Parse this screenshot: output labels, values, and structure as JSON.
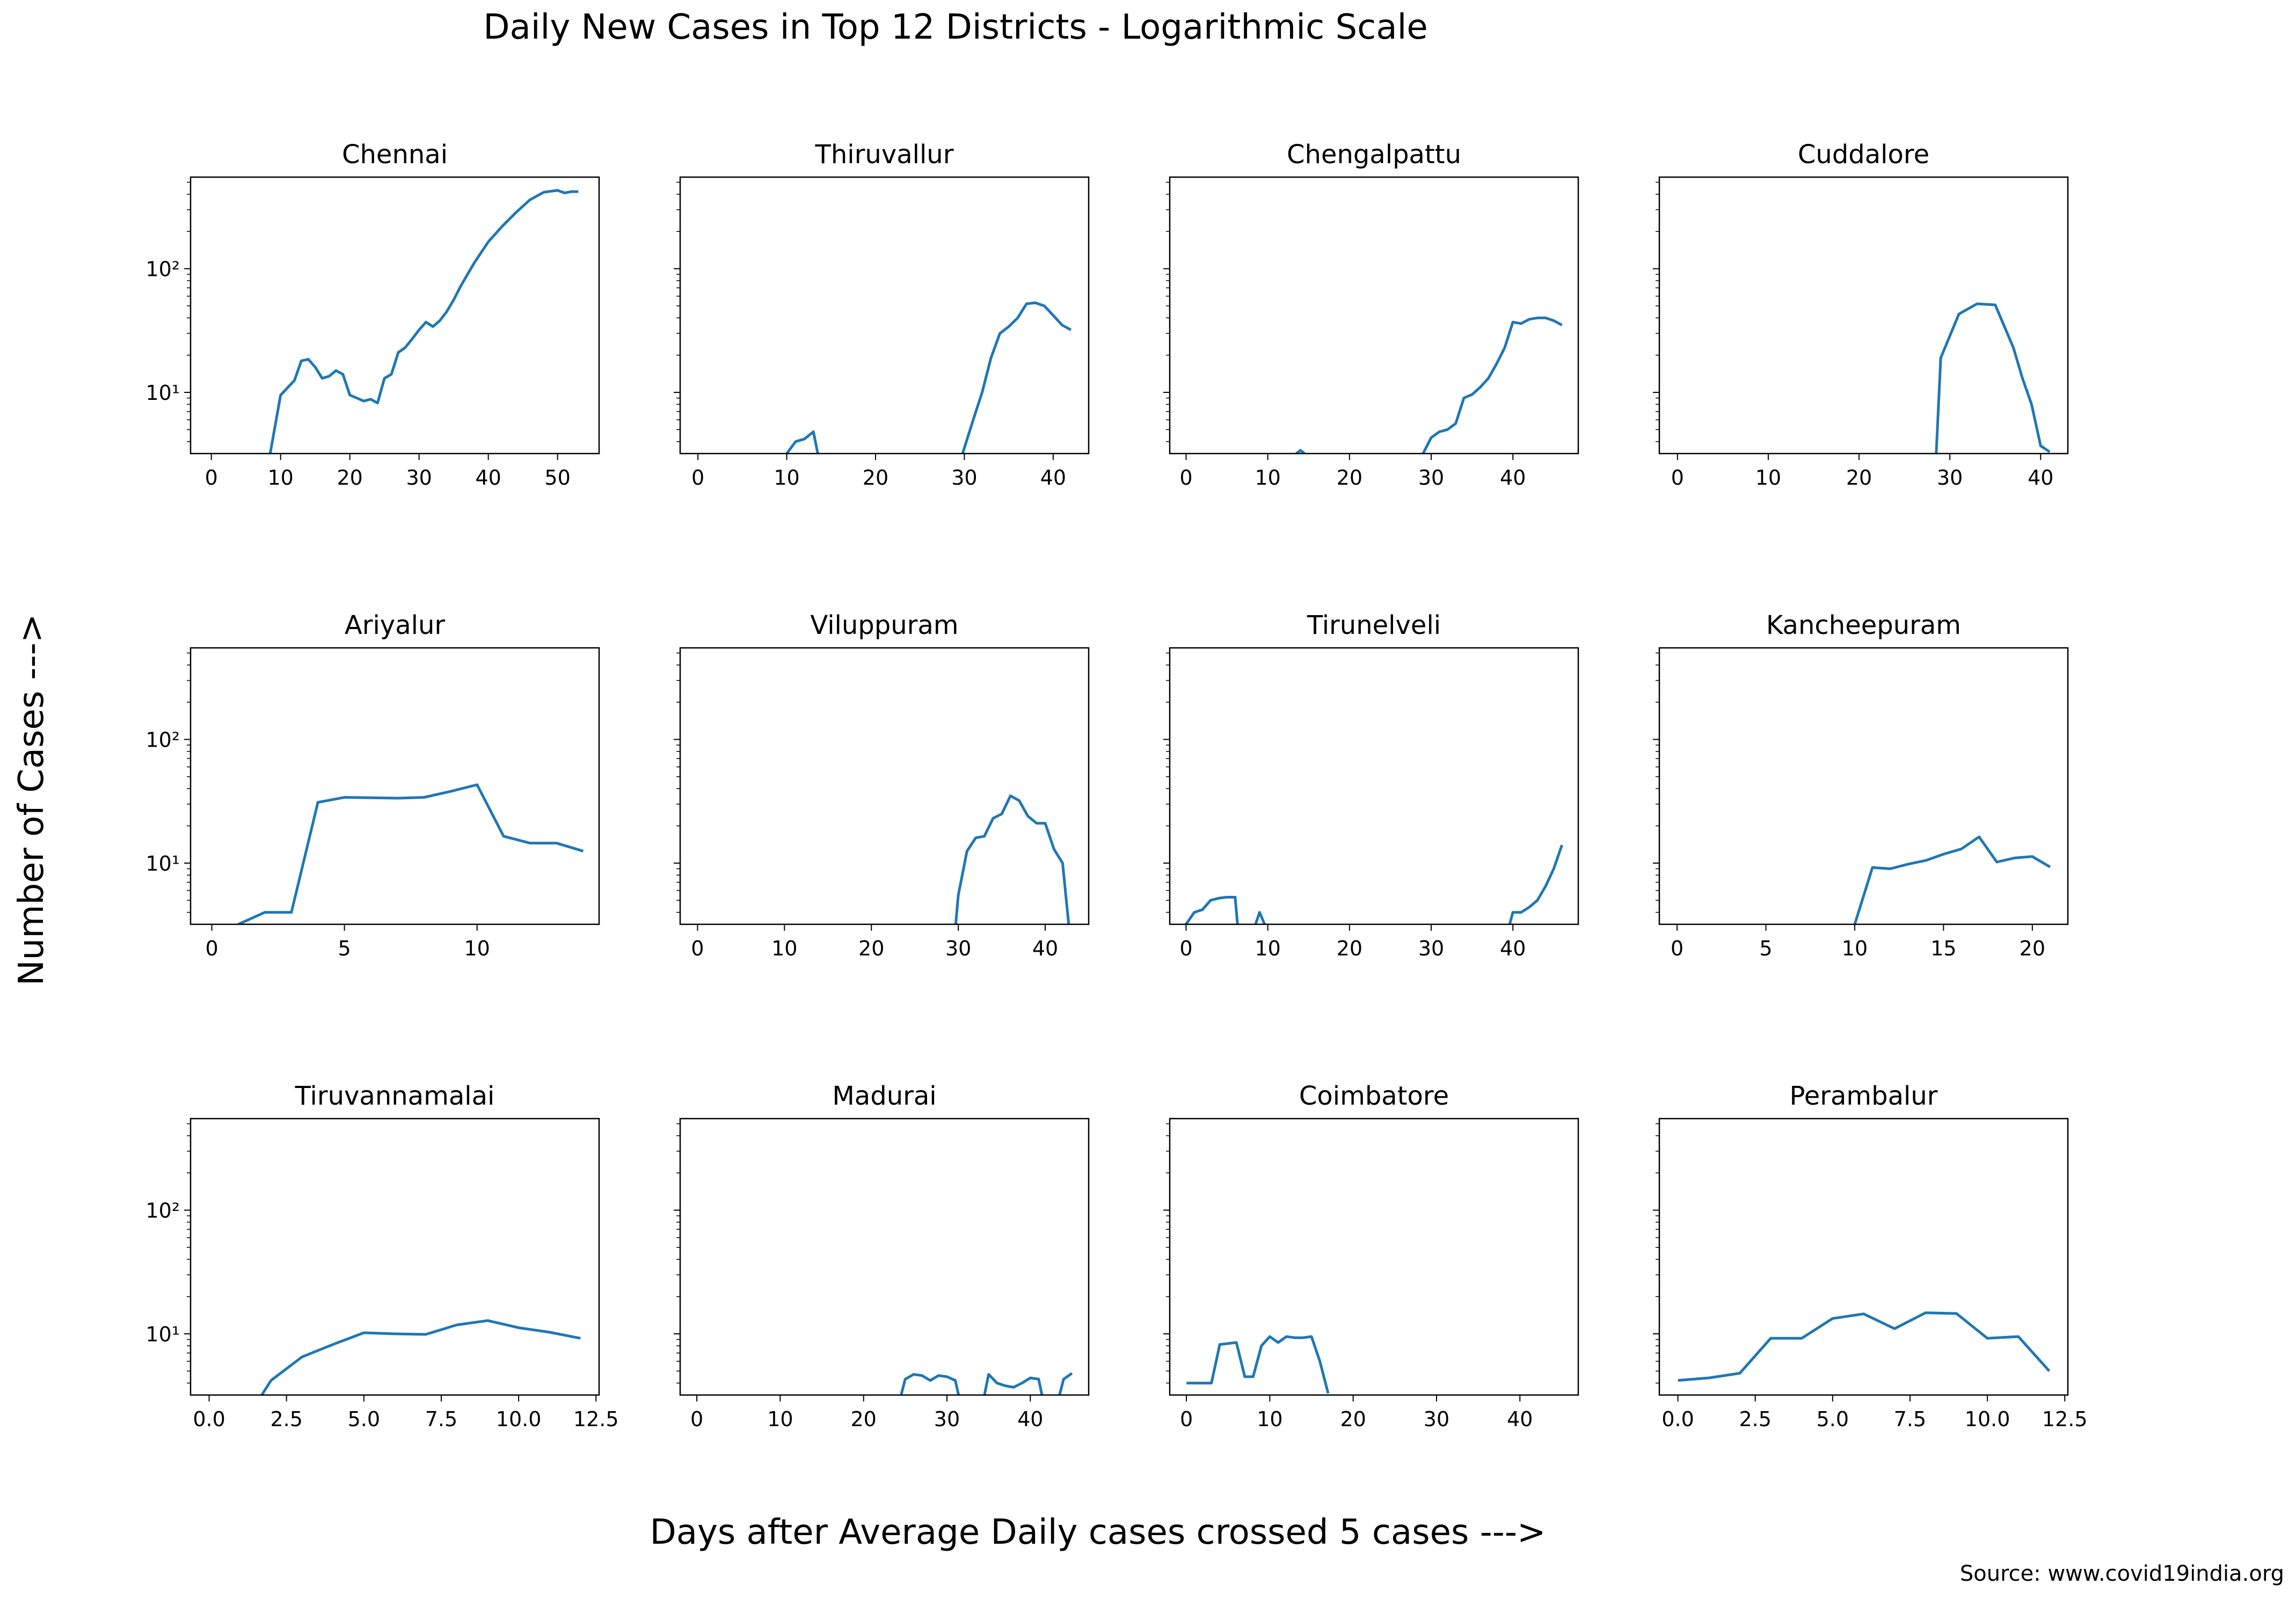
{
  "figure": {
    "title": "Daily New Cases in Top 12 Districts - Logarithmic Scale",
    "xlabel": "Days after Average Daily cases crossed 5 cases --->",
    "ylabel": "Number of Cases --->",
    "source": "Source: www.covid19india.org",
    "line_color": "#1f77b4"
  },
  "chart_data": [
    {
      "type": "line",
      "title": "Chennai",
      "yscale": "log",
      "ylim": [
        3.2,
        550
      ],
      "xlim": [
        -3,
        56
      ],
      "xticks": [
        0,
        10,
        20,
        30,
        40,
        50
      ],
      "xtick_labels": [
        "0",
        "10",
        "20",
        "30",
        "40",
        "50"
      ],
      "yticks": [
        10,
        100
      ],
      "ytick_labels": [
        "10¹",
        "10²"
      ],
      "show_yticklabels": true,
      "x": [
        8.5,
        10,
        12,
        13,
        14,
        15,
        16,
        17,
        18,
        19,
        20,
        21,
        22,
        23,
        24,
        25,
        26,
        27,
        28,
        29,
        30,
        31,
        32,
        33,
        34,
        35,
        36,
        37,
        38,
        40,
        42,
        44,
        46,
        48,
        50,
        51,
        52,
        53
      ],
      "y": [
        3.2,
        9.5,
        12.5,
        18,
        18.5,
        16,
        13,
        13.5,
        15,
        14,
        9.5,
        9,
        8.5,
        8.8,
        8.2,
        13,
        14,
        21,
        23,
        27,
        32,
        37,
        34,
        38,
        45,
        56,
        72,
        90,
        112,
        165,
        220,
        285,
        360,
        415,
        430,
        410,
        420,
        420
      ]
    },
    {
      "type": "line",
      "title": "Thiruvallur",
      "yscale": "log",
      "ylim": [
        3.2,
        550
      ],
      "xlim": [
        -2,
        44
      ],
      "xticks": [
        0,
        10,
        20,
        30,
        40
      ],
      "xtick_labels": [
        "0",
        "10",
        "20",
        "30",
        "40"
      ],
      "yticks": [
        10,
        100
      ],
      "ytick_labels": [
        "10¹",
        "10²"
      ],
      "show_yticklabels": false,
      "x": [
        10,
        11,
        12,
        13,
        13.5,
        null,
        29.8,
        31,
        32,
        33,
        34,
        35,
        36,
        37,
        38,
        39,
        40,
        41,
        42
      ],
      "y": [
        3.2,
        4,
        4.2,
        4.8,
        3.2,
        null,
        3.2,
        6,
        10,
        19,
        30,
        34,
        40,
        52,
        53,
        50,
        42,
        35,
        32
      ]
    },
    {
      "type": "line",
      "title": "Chengalpattu",
      "yscale": "log",
      "ylim": [
        3.2,
        550
      ],
      "xlim": [
        -2,
        48
      ],
      "xticks": [
        0,
        10,
        20,
        30,
        40
      ],
      "xtick_labels": [
        "0",
        "10",
        "20",
        "30",
        "40"
      ],
      "yticks": [
        10,
        100
      ],
      "ytick_labels": [
        "10¹",
        "10²"
      ],
      "show_yticklabels": false,
      "x": [
        13.5,
        14,
        14.5,
        null,
        29,
        30,
        31,
        32,
        33,
        34,
        35,
        36,
        37,
        38,
        39,
        40,
        41,
        42,
        43,
        44,
        45,
        46
      ],
      "y": [
        3.2,
        3.4,
        3.2,
        null,
        3.2,
        4.3,
        4.8,
        5,
        5.6,
        9,
        9.6,
        11,
        13,
        17,
        23,
        37,
        36,
        39,
        40,
        40,
        38,
        35
      ]
    },
    {
      "type": "line",
      "title": "Cuddalore",
      "yscale": "log",
      "ylim": [
        3.2,
        550
      ],
      "xlim": [
        -2,
        43
      ],
      "xticks": [
        0,
        10,
        20,
        30,
        40
      ],
      "xtick_labels": [
        "0",
        "10",
        "20",
        "30",
        "40"
      ],
      "yticks": [
        10,
        100
      ],
      "ytick_labels": [
        "10¹",
        "10²"
      ],
      "show_yticklabels": false,
      "x": [
        28.5,
        29,
        31,
        33,
        35,
        37,
        38,
        39,
        40,
        41
      ],
      "y": [
        3.2,
        19,
        43,
        52,
        51,
        23,
        13,
        8,
        3.7,
        3.3
      ]
    },
    {
      "type": "line",
      "title": "Ariyalur",
      "yscale": "log",
      "ylim": [
        3.2,
        550
      ],
      "xlim": [
        -0.8,
        14.6
      ],
      "xticks": [
        0,
        5,
        10
      ],
      "xtick_labels": [
        "0",
        "5",
        "10"
      ],
      "yticks": [
        10,
        100
      ],
      "ytick_labels": [
        "10¹",
        "10²"
      ],
      "show_yticklabels": true,
      "x": [
        1,
        2,
        3,
        4,
        5,
        7,
        8,
        9,
        10,
        11,
        12,
        13,
        14
      ],
      "y": [
        3.2,
        4,
        4,
        31,
        34,
        33.5,
        34,
        38,
        43,
        16.5,
        14.5,
        14.5,
        12.5
      ]
    },
    {
      "type": "line",
      "title": "Viluppuram",
      "yscale": "log",
      "ylim": [
        3.2,
        550
      ],
      "xlim": [
        -2,
        45
      ],
      "xticks": [
        0,
        10,
        20,
        30,
        40
      ],
      "xtick_labels": [
        "0",
        "10",
        "20",
        "30",
        "40"
      ],
      "yticks": [
        10,
        100
      ],
      "ytick_labels": [
        "10¹",
        "10²"
      ],
      "show_yticklabels": false,
      "x": [
        29.7,
        30,
        31,
        32,
        33,
        34,
        35,
        36,
        37,
        38,
        39,
        40,
        41,
        42,
        42.7
      ],
      "y": [
        3.2,
        5.5,
        12.5,
        16,
        16.5,
        23,
        25,
        35,
        32,
        24,
        21,
        21,
        13,
        10,
        3.2
      ]
    },
    {
      "type": "line",
      "title": "Tirunelveli",
      "yscale": "log",
      "ylim": [
        3.2,
        550
      ],
      "xlim": [
        -2,
        48
      ],
      "xticks": [
        0,
        10,
        20,
        30,
        40
      ],
      "xtick_labels": [
        "0",
        "10",
        "20",
        "30",
        "40"
      ],
      "yticks": [
        10,
        100
      ],
      "ytick_labels": [
        "10¹",
        "10²"
      ],
      "show_yticklabels": false,
      "x": [
        0,
        1,
        2,
        3,
        4,
        5,
        6,
        6.3,
        null,
        8.5,
        9,
        9.6,
        null,
        39.6,
        40,
        41,
        42,
        43,
        44,
        45,
        46
      ],
      "y": [
        3.2,
        4,
        4.2,
        5,
        5.2,
        5.3,
        5.3,
        3.2,
        null,
        3.2,
        4,
        3.2,
        null,
        3.2,
        4,
        4,
        4.4,
        5,
        6.5,
        9,
        14
      ]
    },
    {
      "type": "line",
      "title": "Kancheepuram",
      "yscale": "log",
      "ylim": [
        3.2,
        550
      ],
      "xlim": [
        -1,
        22
      ],
      "xticks": [
        0,
        5,
        10,
        15,
        20
      ],
      "xtick_labels": [
        "0",
        "5",
        "10",
        "15",
        "20"
      ],
      "yticks": [
        10,
        100
      ],
      "ytick_labels": [
        "10¹",
        "10²"
      ],
      "show_yticklabels": false,
      "x": [
        10,
        11,
        12,
        13,
        14,
        15,
        16,
        17,
        18,
        19,
        20,
        21
      ],
      "y": [
        3.2,
        9.2,
        9,
        9.8,
        10.5,
        11.8,
        13,
        16.3,
        10.2,
        11,
        11.3,
        9.3
      ]
    },
    {
      "type": "line",
      "title": "Tiruvannamalai",
      "yscale": "log",
      "ylim": [
        3.2,
        550
      ],
      "xlim": [
        -0.6,
        12.6
      ],
      "xticks": [
        0,
        2.5,
        5,
        7.5,
        10,
        12.5
      ],
      "xtick_labels": [
        "0.0",
        "2.5",
        "5.0",
        "7.5",
        "10.0",
        "12.5"
      ],
      "yticks": [
        10,
        100
      ],
      "ytick_labels": [
        "10¹",
        "10²"
      ],
      "show_yticklabels": true,
      "x": [
        1.7,
        2,
        3,
        4,
        5,
        6,
        7,
        8,
        9,
        10,
        11,
        12
      ],
      "y": [
        3.2,
        4.2,
        6.5,
        8.2,
        10.2,
        10,
        9.9,
        11.8,
        12.8,
        11.2,
        10.3,
        9.2
      ]
    },
    {
      "type": "line",
      "title": "Madurai",
      "yscale": "log",
      "ylim": [
        3.2,
        550
      ],
      "xlim": [
        -2,
        47
      ],
      "xticks": [
        0,
        10,
        20,
        30,
        40
      ],
      "xtick_labels": [
        "0",
        "10",
        "20",
        "30",
        "40"
      ],
      "yticks": [
        10,
        100
      ],
      "ytick_labels": [
        "10¹",
        "10²"
      ],
      "show_yticklabels": false,
      "x": [
        24.5,
        25,
        26,
        27,
        28,
        29,
        30,
        31,
        31.4,
        null,
        34.5,
        35,
        36,
        37,
        38,
        39,
        40,
        41,
        41.4,
        null,
        43.5,
        44,
        45
      ],
      "y": [
        3.2,
        4.3,
        4.7,
        4.6,
        4.2,
        4.6,
        4.5,
        4.2,
        3.2,
        null,
        3.2,
        4.7,
        4,
        3.8,
        3.7,
        4,
        4.4,
        4.3,
        3.2,
        null,
        3.2,
        4.3,
        4.8
      ]
    },
    {
      "type": "line",
      "title": "Coimbatore",
      "yscale": "log",
      "ylim": [
        3.2,
        550
      ],
      "xlim": [
        -2,
        47
      ],
      "xticks": [
        0,
        10,
        20,
        30,
        40
      ],
      "xtick_labels": [
        "0",
        "10",
        "20",
        "30",
        "40"
      ],
      "yticks": [
        10,
        100
      ],
      "ytick_labels": [
        "10¹",
        "10²"
      ],
      "show_yticklabels": false,
      "x": [
        0,
        3,
        4,
        6,
        7,
        8,
        9,
        10,
        11,
        12,
        13,
        14,
        15,
        16,
        17
      ],
      "y": [
        4,
        4,
        8.2,
        8.5,
        4.5,
        4.5,
        8,
        9.5,
        8.5,
        9.5,
        9.3,
        9.3,
        9.5,
        6,
        3.3
      ]
    },
    {
      "type": "line",
      "title": "Perambalur",
      "yscale": "log",
      "ylim": [
        3.2,
        550
      ],
      "xlim": [
        -0.6,
        12.6
      ],
      "xticks": [
        0,
        2.5,
        5,
        7.5,
        10,
        12.5
      ],
      "xtick_labels": [
        "0.0",
        "2.5",
        "5.0",
        "7.5",
        "10.0",
        "12.5"
      ],
      "yticks": [
        10,
        100
      ],
      "ytick_labels": [
        "10¹",
        "10²"
      ],
      "show_yticklabels": false,
      "x": [
        0,
        1,
        2,
        3,
        4,
        5,
        6,
        7,
        8,
        9,
        10,
        11,
        12
      ],
      "y": [
        4.2,
        4.4,
        4.8,
        9.2,
        9.2,
        13.3,
        14.5,
        11,
        14.8,
        14.6,
        9.2,
        9.5,
        5
      ]
    }
  ]
}
